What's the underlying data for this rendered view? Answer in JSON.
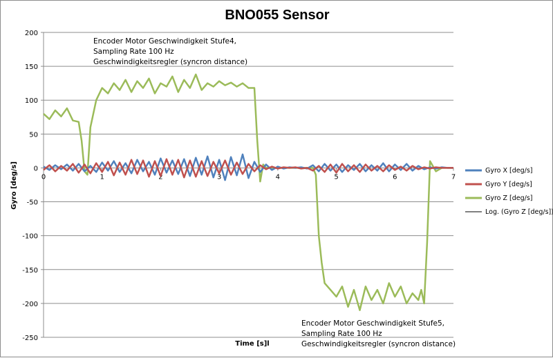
{
  "chart_data": {
    "type": "line",
    "title": "BNO055 Sensor",
    "xlabel": "Time [s]l",
    "ylabel": "Gyro [deg/s]",
    "xlim": [
      0,
      7
    ],
    "ylim": [
      -250,
      200
    ],
    "xticks": [
      0,
      1,
      2,
      3,
      4,
      5,
      6,
      7
    ],
    "yticks": [
      200,
      150,
      100,
      50,
      0,
      -50,
      -100,
      -150,
      -200,
      -250
    ],
    "grid": "horizontal",
    "legend_position": "right",
    "series": [
      {
        "name": "Gyro X [deg/s]",
        "color": "#4f81bd",
        "x": [
          0.0,
          0.1,
          0.2,
          0.3,
          0.4,
          0.5,
          0.6,
          0.7,
          0.8,
          0.9,
          1.0,
          1.1,
          1.2,
          1.3,
          1.4,
          1.5,
          1.6,
          1.7,
          1.8,
          1.9,
          2.0,
          2.1,
          2.2,
          2.3,
          2.4,
          2.5,
          2.6,
          2.7,
          2.8,
          2.9,
          3.0,
          3.1,
          3.2,
          3.3,
          3.4,
          3.5,
          3.6,
          3.7,
          3.8,
          3.9,
          4.0,
          4.1,
          4.2,
          4.3,
          4.4,
          4.5,
          4.6,
          4.7,
          4.8,
          4.9,
          5.0,
          5.1,
          5.2,
          5.3,
          5.4,
          5.5,
          5.6,
          5.7,
          5.8,
          5.9,
          6.0,
          6.1,
          6.2,
          6.3,
          6.4,
          6.5,
          6.6,
          6.7,
          6.8,
          6.9,
          7.0
        ],
        "values": [
          2,
          -3,
          4,
          -2,
          5,
          -4,
          6,
          -5,
          3,
          -6,
          8,
          -4,
          10,
          -6,
          7,
          -8,
          12,
          -5,
          9,
          -10,
          14,
          -7,
          11,
          -9,
          13,
          -12,
          15,
          -10,
          17,
          -14,
          12,
          -18,
          16,
          -11,
          20,
          -15,
          9,
          -6,
          5,
          -3,
          2,
          -1,
          1,
          0,
          1,
          -1,
          4,
          -5,
          6,
          -4,
          5,
          -6,
          4,
          -3,
          6,
          -5,
          4,
          -4,
          7,
          -5,
          5,
          -3,
          6,
          -4,
          3,
          -2,
          1,
          -1,
          1,
          0,
          0
        ]
      },
      {
        "name": "Gyro Y [deg/s]",
        "color": "#c0504d",
        "x": [
          0.0,
          0.1,
          0.2,
          0.3,
          0.4,
          0.5,
          0.6,
          0.7,
          0.8,
          0.9,
          1.0,
          1.1,
          1.2,
          1.3,
          1.4,
          1.5,
          1.6,
          1.7,
          1.8,
          1.9,
          2.0,
          2.1,
          2.2,
          2.3,
          2.4,
          2.5,
          2.6,
          2.7,
          2.8,
          2.9,
          3.0,
          3.1,
          3.2,
          3.3,
          3.4,
          3.5,
          3.6,
          3.7,
          3.8,
          3.9,
          4.0,
          4.1,
          4.2,
          4.3,
          4.4,
          4.5,
          4.6,
          4.7,
          4.8,
          4.9,
          5.0,
          5.1,
          5.2,
          5.3,
          5.4,
          5.5,
          5.6,
          5.7,
          5.8,
          5.9,
          6.0,
          6.1,
          6.2,
          6.3,
          6.4,
          6.5,
          6.6,
          6.7,
          6.8,
          6.9,
          7.0
        ],
        "values": [
          -3,
          4,
          -5,
          3,
          -4,
          6,
          -7,
          5,
          -8,
          7,
          -6,
          9,
          -11,
          8,
          -10,
          12,
          -9,
          11,
          -13,
          10,
          -12,
          13,
          -10,
          12,
          -14,
          11,
          -13,
          10,
          -12,
          9,
          -8,
          11,
          -10,
          8,
          -9,
          6,
          -5,
          4,
          -2,
          2,
          -1,
          1,
          0,
          1,
          -1,
          0,
          -4,
          3,
          -6,
          5,
          -7,
          6,
          -5,
          4,
          -6,
          5,
          -4,
          3,
          -5,
          4,
          -3,
          2,
          -4,
          3,
          -2,
          1,
          -1,
          1,
          0,
          0,
          0
        ]
      },
      {
        "name": "Gyro Z [deg/s]",
        "color": "#9bbb59",
        "x": [
          0.0,
          0.1,
          0.2,
          0.3,
          0.4,
          0.5,
          0.6,
          0.65,
          0.7,
          0.75,
          0.8,
          0.9,
          1.0,
          1.1,
          1.2,
          1.3,
          1.4,
          1.5,
          1.6,
          1.7,
          1.8,
          1.9,
          2.0,
          2.1,
          2.2,
          2.3,
          2.4,
          2.5,
          2.6,
          2.7,
          2.8,
          2.9,
          3.0,
          3.1,
          3.2,
          3.3,
          3.4,
          3.5,
          3.6,
          3.65,
          3.7,
          3.75,
          3.8,
          3.9,
          4.0,
          4.2,
          4.4,
          4.6,
          4.65,
          4.7,
          4.75,
          4.8,
          4.9,
          5.0,
          5.1,
          5.2,
          5.3,
          5.4,
          5.5,
          5.6,
          5.7,
          5.8,
          5.9,
          6.0,
          6.1,
          6.2,
          6.3,
          6.4,
          6.45,
          6.5,
          6.55,
          6.6,
          6.7,
          6.8,
          7.0
        ],
        "values": [
          80,
          72,
          85,
          76,
          88,
          70,
          68,
          40,
          -5,
          -10,
          60,
          100,
          118,
          110,
          125,
          115,
          130,
          112,
          128,
          118,
          132,
          110,
          125,
          120,
          135,
          112,
          130,
          118,
          138,
          115,
          125,
          120,
          128,
          122,
          126,
          120,
          125,
          118,
          118,
          40,
          -20,
          5,
          0,
          0,
          0,
          0,
          0,
          0,
          -10,
          -100,
          -140,
          -170,
          -180,
          -190,
          -175,
          -205,
          -180,
          -210,
          -175,
          -195,
          -180,
          -200,
          -170,
          -190,
          -175,
          -200,
          -185,
          -195,
          -180,
          -200,
          -110,
          10,
          -5,
          0,
          0
        ]
      },
      {
        "name": "Log. (Gyro Z [deg/s])",
        "color": "#000000",
        "x": [],
        "values": []
      }
    ],
    "annotations": [
      {
        "lines": [
          "Encoder Motor Geschwindigkeit Stufe4,",
          "Sampling Rate 100 Hz",
          "Geschwindigkeitsregler (syncron distance)"
        ]
      },
      {
        "lines": [
          "Encoder Motor Geschwindigkeit Stufe5,",
          "Sampling Rate 100 Hz",
          "Geschwindigkeitsregler (syncron distance)"
        ]
      }
    ]
  }
}
